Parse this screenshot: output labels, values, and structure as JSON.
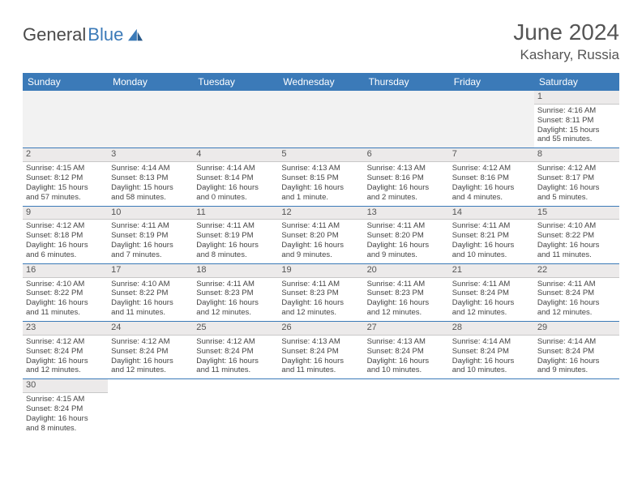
{
  "logo": {
    "text1": "General",
    "text2": "Blue"
  },
  "title": "June 2024",
  "location": "Kashary, Russia",
  "colors": {
    "header_bg": "#3b7ab8",
    "header_text": "#ffffff",
    "daynum_bg": "#eceaea",
    "blank_bg": "#f2f2f2",
    "cell_border": "#3b7ab8",
    "body_text": "#444444"
  },
  "weekdays": [
    "Sunday",
    "Monday",
    "Tuesday",
    "Wednesday",
    "Thursday",
    "Friday",
    "Saturday"
  ],
  "grid": [
    [
      {
        "blank": true
      },
      {
        "blank": true
      },
      {
        "blank": true
      },
      {
        "blank": true
      },
      {
        "blank": true
      },
      {
        "blank": true
      },
      {
        "day": "1",
        "sunrise": "Sunrise: 4:16 AM",
        "sunset": "Sunset: 8:11 PM",
        "daylight1": "Daylight: 15 hours",
        "daylight2": "and 55 minutes."
      }
    ],
    [
      {
        "day": "2",
        "sunrise": "Sunrise: 4:15 AM",
        "sunset": "Sunset: 8:12 PM",
        "daylight1": "Daylight: 15 hours",
        "daylight2": "and 57 minutes."
      },
      {
        "day": "3",
        "sunrise": "Sunrise: 4:14 AM",
        "sunset": "Sunset: 8:13 PM",
        "daylight1": "Daylight: 15 hours",
        "daylight2": "and 58 minutes."
      },
      {
        "day": "4",
        "sunrise": "Sunrise: 4:14 AM",
        "sunset": "Sunset: 8:14 PM",
        "daylight1": "Daylight: 16 hours",
        "daylight2": "and 0 minutes."
      },
      {
        "day": "5",
        "sunrise": "Sunrise: 4:13 AM",
        "sunset": "Sunset: 8:15 PM",
        "daylight1": "Daylight: 16 hours",
        "daylight2": "and 1 minute."
      },
      {
        "day": "6",
        "sunrise": "Sunrise: 4:13 AM",
        "sunset": "Sunset: 8:16 PM",
        "daylight1": "Daylight: 16 hours",
        "daylight2": "and 2 minutes."
      },
      {
        "day": "7",
        "sunrise": "Sunrise: 4:12 AM",
        "sunset": "Sunset: 8:16 PM",
        "daylight1": "Daylight: 16 hours",
        "daylight2": "and 4 minutes."
      },
      {
        "day": "8",
        "sunrise": "Sunrise: 4:12 AM",
        "sunset": "Sunset: 8:17 PM",
        "daylight1": "Daylight: 16 hours",
        "daylight2": "and 5 minutes."
      }
    ],
    [
      {
        "day": "9",
        "sunrise": "Sunrise: 4:12 AM",
        "sunset": "Sunset: 8:18 PM",
        "daylight1": "Daylight: 16 hours",
        "daylight2": "and 6 minutes."
      },
      {
        "day": "10",
        "sunrise": "Sunrise: 4:11 AM",
        "sunset": "Sunset: 8:19 PM",
        "daylight1": "Daylight: 16 hours",
        "daylight2": "and 7 minutes."
      },
      {
        "day": "11",
        "sunrise": "Sunrise: 4:11 AM",
        "sunset": "Sunset: 8:19 PM",
        "daylight1": "Daylight: 16 hours",
        "daylight2": "and 8 minutes."
      },
      {
        "day": "12",
        "sunrise": "Sunrise: 4:11 AM",
        "sunset": "Sunset: 8:20 PM",
        "daylight1": "Daylight: 16 hours",
        "daylight2": "and 9 minutes."
      },
      {
        "day": "13",
        "sunrise": "Sunrise: 4:11 AM",
        "sunset": "Sunset: 8:20 PM",
        "daylight1": "Daylight: 16 hours",
        "daylight2": "and 9 minutes."
      },
      {
        "day": "14",
        "sunrise": "Sunrise: 4:11 AM",
        "sunset": "Sunset: 8:21 PM",
        "daylight1": "Daylight: 16 hours",
        "daylight2": "and 10 minutes."
      },
      {
        "day": "15",
        "sunrise": "Sunrise: 4:10 AM",
        "sunset": "Sunset: 8:22 PM",
        "daylight1": "Daylight: 16 hours",
        "daylight2": "and 11 minutes."
      }
    ],
    [
      {
        "day": "16",
        "sunrise": "Sunrise: 4:10 AM",
        "sunset": "Sunset: 8:22 PM",
        "daylight1": "Daylight: 16 hours",
        "daylight2": "and 11 minutes."
      },
      {
        "day": "17",
        "sunrise": "Sunrise: 4:10 AM",
        "sunset": "Sunset: 8:22 PM",
        "daylight1": "Daylight: 16 hours",
        "daylight2": "and 11 minutes."
      },
      {
        "day": "18",
        "sunrise": "Sunrise: 4:11 AM",
        "sunset": "Sunset: 8:23 PM",
        "daylight1": "Daylight: 16 hours",
        "daylight2": "and 12 minutes."
      },
      {
        "day": "19",
        "sunrise": "Sunrise: 4:11 AM",
        "sunset": "Sunset: 8:23 PM",
        "daylight1": "Daylight: 16 hours",
        "daylight2": "and 12 minutes."
      },
      {
        "day": "20",
        "sunrise": "Sunrise: 4:11 AM",
        "sunset": "Sunset: 8:23 PM",
        "daylight1": "Daylight: 16 hours",
        "daylight2": "and 12 minutes."
      },
      {
        "day": "21",
        "sunrise": "Sunrise: 4:11 AM",
        "sunset": "Sunset: 8:24 PM",
        "daylight1": "Daylight: 16 hours",
        "daylight2": "and 12 minutes."
      },
      {
        "day": "22",
        "sunrise": "Sunrise: 4:11 AM",
        "sunset": "Sunset: 8:24 PM",
        "daylight1": "Daylight: 16 hours",
        "daylight2": "and 12 minutes."
      }
    ],
    [
      {
        "day": "23",
        "sunrise": "Sunrise: 4:12 AM",
        "sunset": "Sunset: 8:24 PM",
        "daylight1": "Daylight: 16 hours",
        "daylight2": "and 12 minutes."
      },
      {
        "day": "24",
        "sunrise": "Sunrise: 4:12 AM",
        "sunset": "Sunset: 8:24 PM",
        "daylight1": "Daylight: 16 hours",
        "daylight2": "and 12 minutes."
      },
      {
        "day": "25",
        "sunrise": "Sunrise: 4:12 AM",
        "sunset": "Sunset: 8:24 PM",
        "daylight1": "Daylight: 16 hours",
        "daylight2": "and 11 minutes."
      },
      {
        "day": "26",
        "sunrise": "Sunrise: 4:13 AM",
        "sunset": "Sunset: 8:24 PM",
        "daylight1": "Daylight: 16 hours",
        "daylight2": "and 11 minutes."
      },
      {
        "day": "27",
        "sunrise": "Sunrise: 4:13 AM",
        "sunset": "Sunset: 8:24 PM",
        "daylight1": "Daylight: 16 hours",
        "daylight2": "and 10 minutes."
      },
      {
        "day": "28",
        "sunrise": "Sunrise: 4:14 AM",
        "sunset": "Sunset: 8:24 PM",
        "daylight1": "Daylight: 16 hours",
        "daylight2": "and 10 minutes."
      },
      {
        "day": "29",
        "sunrise": "Sunrise: 4:14 AM",
        "sunset": "Sunset: 8:24 PM",
        "daylight1": "Daylight: 16 hours",
        "daylight2": "and 9 minutes."
      }
    ],
    [
      {
        "day": "30",
        "sunrise": "Sunrise: 4:15 AM",
        "sunset": "Sunset: 8:24 PM",
        "daylight1": "Daylight: 16 hours",
        "daylight2": "and 8 minutes."
      },
      {
        "blank": true
      },
      {
        "blank": true
      },
      {
        "blank": true
      },
      {
        "blank": true
      },
      {
        "blank": true
      },
      {
        "blank": true
      }
    ]
  ]
}
